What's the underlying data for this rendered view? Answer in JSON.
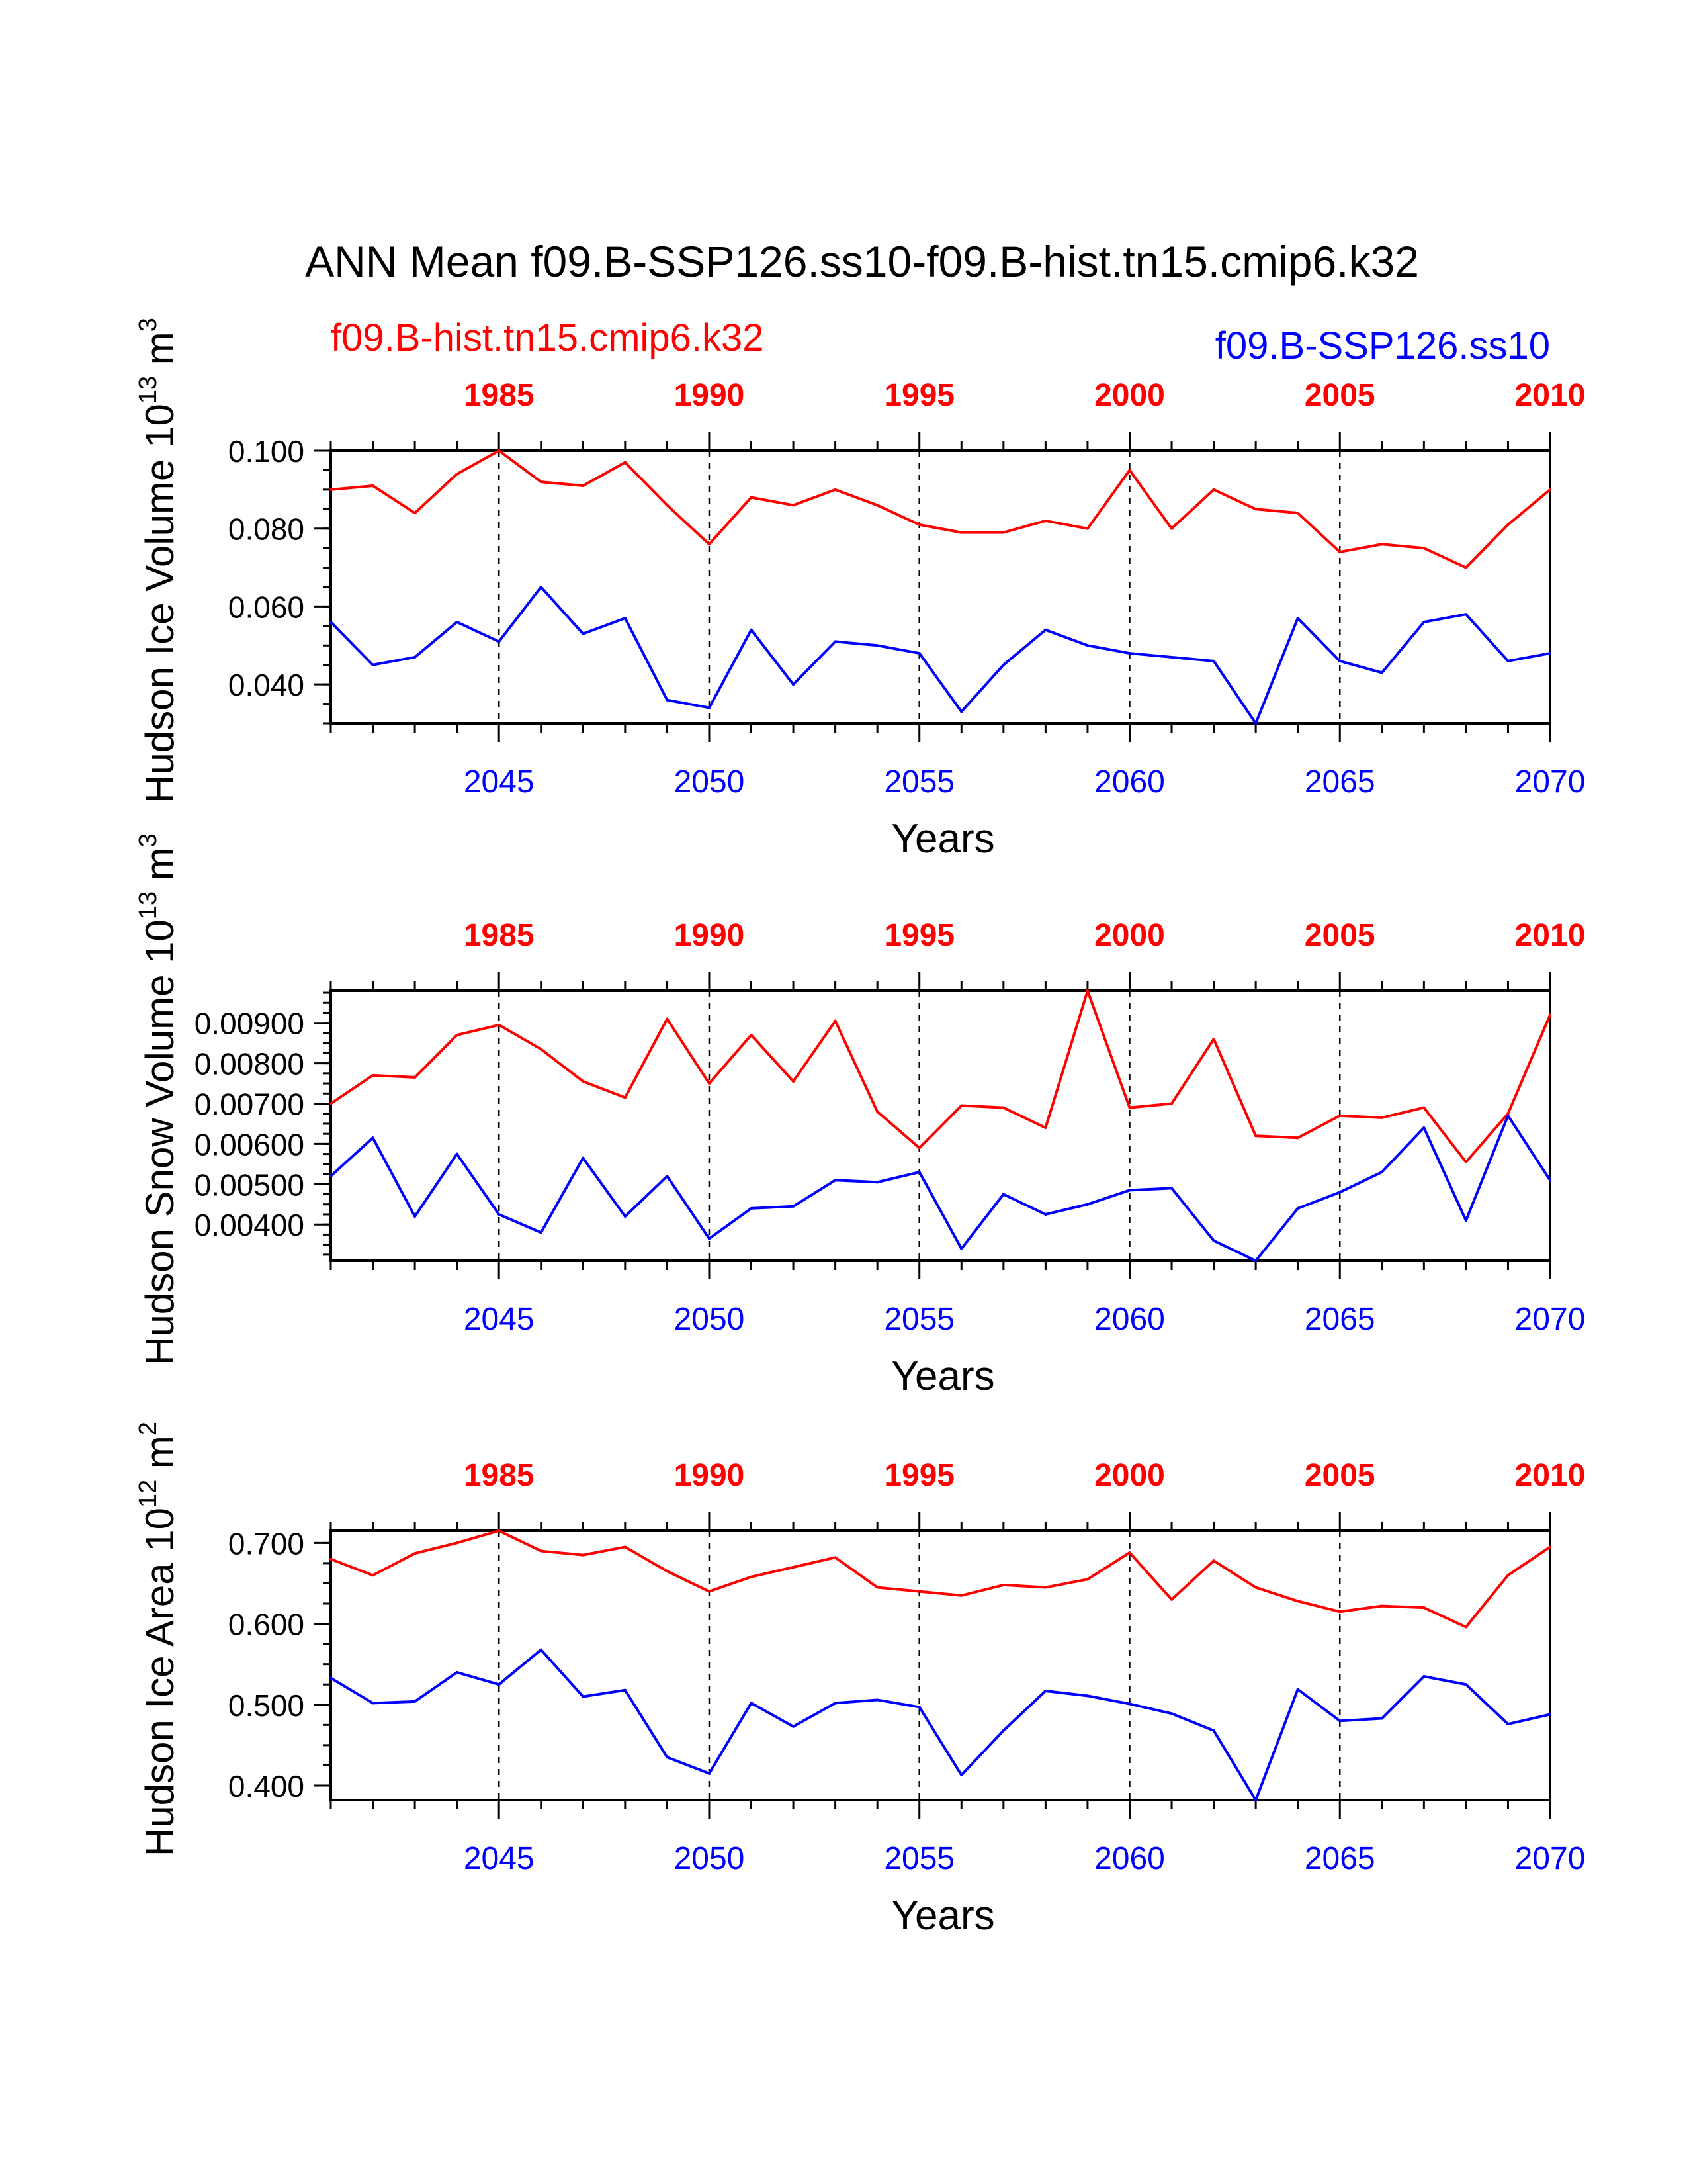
{
  "title": "ANN Mean f09.B-SSP126.ss10-f09.B-hist.tn15.cmip6.k32",
  "legend": {
    "left_label": "f09.B-hist.tn15.cmip6.k32",
    "right_label": "f09.B-SSP126.ss10"
  },
  "colors": {
    "hist": "#ff0000",
    "ssp": "#0000ff",
    "axis": "#000000"
  },
  "chart_data": [
    {
      "type": "line",
      "ylabel": "Hudson Ice Volume",
      "yunit_base": "10",
      "yunit_exp": "13",
      "yunit_tail": "m",
      "yunit_tail_exp": "3",
      "xlabel": "Years",
      "ylim": [
        0.03,
        0.1
      ],
      "ytick_values": [
        0.04,
        0.06,
        0.08,
        0.1
      ],
      "ytick_labels": [
        "0.040",
        "0.060",
        "0.080",
        "0.100"
      ],
      "bottom_axis": {
        "range": [
          2041,
          2070
        ],
        "tick_values": [
          2045,
          2050,
          2055,
          2060,
          2065,
          2070
        ],
        "tick_labels": [
          "2045",
          "2050",
          "2055",
          "2060",
          "2065",
          "2070"
        ]
      },
      "top_axis": {
        "range": [
          1981,
          2010
        ],
        "tick_values": [
          1985,
          1990,
          1995,
          2000,
          2005,
          2010
        ],
        "tick_labels": [
          "1985",
          "1990",
          "1995",
          "2000",
          "2005",
          "2010"
        ]
      },
      "series": [
        {
          "name": "f09.B-hist.tn15.cmip6.k32",
          "axis": "top",
          "x": [
            1981,
            1982,
            1983,
            1984,
            1985,
            1986,
            1987,
            1988,
            1989,
            1990,
            1991,
            1992,
            1993,
            1994,
            1995,
            1996,
            1997,
            1998,
            1999,
            2000,
            2001,
            2002,
            2003,
            2004,
            2005,
            2006,
            2007,
            2008,
            2009,
            2010
          ],
          "values": [
            0.09,
            0.091,
            0.084,
            0.094,
            0.1,
            0.092,
            0.091,
            0.097,
            0.086,
            0.076,
            0.088,
            0.086,
            0.09,
            0.086,
            0.081,
            0.079,
            0.079,
            0.082,
            0.08,
            0.095,
            0.08,
            0.09,
            0.085,
            0.084,
            0.074,
            0.076,
            0.075,
            0.07,
            0.081,
            0.09
          ]
        },
        {
          "name": "f09.B-SSP126.ss10",
          "axis": "bottom",
          "x": [
            2041,
            2042,
            2043,
            2044,
            2045,
            2046,
            2047,
            2048,
            2049,
            2050,
            2051,
            2052,
            2053,
            2054,
            2055,
            2056,
            2057,
            2058,
            2059,
            2060,
            2061,
            2062,
            2063,
            2064,
            2065,
            2066,
            2067,
            2068,
            2069,
            2070
          ],
          "values": [
            0.056,
            0.045,
            0.047,
            0.056,
            0.051,
            0.065,
            0.053,
            0.057,
            0.036,
            0.034,
            0.054,
            0.04,
            0.051,
            0.05,
            0.048,
            0.033,
            0.045,
            0.054,
            0.05,
            0.048,
            0.047,
            0.046,
            0.03,
            0.057,
            0.046,
            0.043,
            0.056,
            0.058,
            0.046,
            0.048
          ]
        }
      ]
    },
    {
      "type": "line",
      "ylabel": "Hudson Snow Volume",
      "yunit_base": "10",
      "yunit_exp": "13",
      "yunit_tail": "m",
      "yunit_tail_exp": "3",
      "xlabel": "Years",
      "ylim": [
        0.0031,
        0.0098
      ],
      "ytick_values": [
        0.004,
        0.005,
        0.006,
        0.007,
        0.008,
        0.009
      ],
      "ytick_labels": [
        "0.00400",
        "0.00500",
        "0.00600",
        "0.00700",
        "0.00800",
        "0.00900"
      ],
      "bottom_axis": {
        "range": [
          2041,
          2070
        ],
        "tick_values": [
          2045,
          2050,
          2055,
          2060,
          2065,
          2070
        ],
        "tick_labels": [
          "2045",
          "2050",
          "2055",
          "2060",
          "2065",
          "2070"
        ]
      },
      "top_axis": {
        "range": [
          1981,
          2010
        ],
        "tick_values": [
          1985,
          1990,
          1995,
          2000,
          2005,
          2010
        ],
        "tick_labels": [
          "1985",
          "1990",
          "1995",
          "2000",
          "2005",
          "2010"
        ]
      },
      "series": [
        {
          "name": "f09.B-hist.tn15.cmip6.k32",
          "axis": "top",
          "x": [
            1981,
            1982,
            1983,
            1984,
            1985,
            1986,
            1987,
            1988,
            1989,
            1990,
            1991,
            1992,
            1993,
            1994,
            1995,
            1996,
            1997,
            1998,
            1999,
            2000,
            2001,
            2002,
            2003,
            2004,
            2005,
            2006,
            2007,
            2008,
            2009,
            2010
          ],
          "values": [
            0.007,
            0.0077,
            0.00765,
            0.0087,
            0.00895,
            0.00835,
            0.00755,
            0.00715,
            0.0091,
            0.0075,
            0.0087,
            0.00755,
            0.00905,
            0.0068,
            0.0059,
            0.00695,
            0.0069,
            0.0064,
            0.0098,
            0.0069,
            0.007,
            0.0086,
            0.0062,
            0.00615,
            0.0067,
            0.00665,
            0.0069,
            0.00555,
            0.00675,
            0.0092
          ]
        },
        {
          "name": "f09.B-SSP126.ss10",
          "axis": "bottom",
          "x": [
            2041,
            2042,
            2043,
            2044,
            2045,
            2046,
            2047,
            2048,
            2049,
            2050,
            2051,
            2052,
            2053,
            2054,
            2055,
            2056,
            2057,
            2058,
            2059,
            2060,
            2061,
            2062,
            2063,
            2064,
            2065,
            2066,
            2067,
            2068,
            2069,
            2070
          ],
          "values": [
            0.0052,
            0.00615,
            0.0042,
            0.00575,
            0.00425,
            0.0038,
            0.00565,
            0.0042,
            0.0052,
            0.00365,
            0.0044,
            0.00445,
            0.0051,
            0.00505,
            0.0053,
            0.0034,
            0.00475,
            0.00425,
            0.0045,
            0.00485,
            0.0049,
            0.0036,
            0.0031,
            0.0044,
            0.0048,
            0.0053,
            0.0064,
            0.0041,
            0.0067,
            0.0051
          ]
        }
      ]
    },
    {
      "type": "line",
      "ylabel": "Hudson Ice Area",
      "yunit_base": "10",
      "yunit_exp": "12",
      "yunit_tail": "m",
      "yunit_tail_exp": "2",
      "xlabel": "Years",
      "ylim": [
        0.382,
        0.715
      ],
      "ytick_values": [
        0.4,
        0.5,
        0.6,
        0.7
      ],
      "ytick_labels": [
        "0.400",
        "0.500",
        "0.600",
        "0.700"
      ],
      "bottom_axis": {
        "range": [
          2041,
          2070
        ],
        "tick_values": [
          2045,
          2050,
          2055,
          2060,
          2065,
          2070
        ],
        "tick_labels": [
          "2045",
          "2050",
          "2055",
          "2060",
          "2065",
          "2070"
        ]
      },
      "top_axis": {
        "range": [
          1981,
          2010
        ],
        "tick_values": [
          1985,
          1990,
          1995,
          2000,
          2005,
          2010
        ],
        "tick_labels": [
          "1985",
          "1990",
          "1995",
          "2000",
          "2005",
          "2010"
        ]
      },
      "series": [
        {
          "name": "f09.B-hist.tn15.cmip6.k32",
          "axis": "top",
          "x": [
            1981,
            1982,
            1983,
            1984,
            1985,
            1986,
            1987,
            1988,
            1989,
            1990,
            1991,
            1992,
            1993,
            1994,
            1995,
            1996,
            1997,
            1998,
            1999,
            2000,
            2001,
            2002,
            2003,
            2004,
            2005,
            2006,
            2007,
            2008,
            2009,
            2010
          ],
          "values": [
            0.68,
            0.66,
            0.687,
            0.7,
            0.715,
            0.69,
            0.685,
            0.695,
            0.665,
            0.64,
            0.658,
            0.67,
            0.682,
            0.645,
            0.64,
            0.635,
            0.648,
            0.645,
            0.655,
            0.688,
            0.63,
            0.678,
            0.645,
            0.628,
            0.615,
            0.622,
            0.62,
            0.596,
            0.66,
            0.695
          ]
        },
        {
          "name": "f09.B-SSP126.ss10",
          "axis": "bottom",
          "x": [
            2041,
            2042,
            2043,
            2044,
            2045,
            2046,
            2047,
            2048,
            2049,
            2050,
            2051,
            2052,
            2053,
            2054,
            2055,
            2056,
            2057,
            2058,
            2059,
            2060,
            2061,
            2062,
            2063,
            2064,
            2065,
            2066,
            2067,
            2068,
            2069,
            2070
          ],
          "values": [
            0.533,
            0.502,
            0.504,
            0.54,
            0.525,
            0.568,
            0.51,
            0.518,
            0.435,
            0.415,
            0.502,
            0.473,
            0.502,
            0.506,
            0.497,
            0.413,
            0.468,
            0.517,
            0.511,
            0.501,
            0.489,
            0.468,
            0.382,
            0.519,
            0.48,
            0.483,
            0.535,
            0.525,
            0.476,
            0.488
          ]
        }
      ]
    }
  ]
}
